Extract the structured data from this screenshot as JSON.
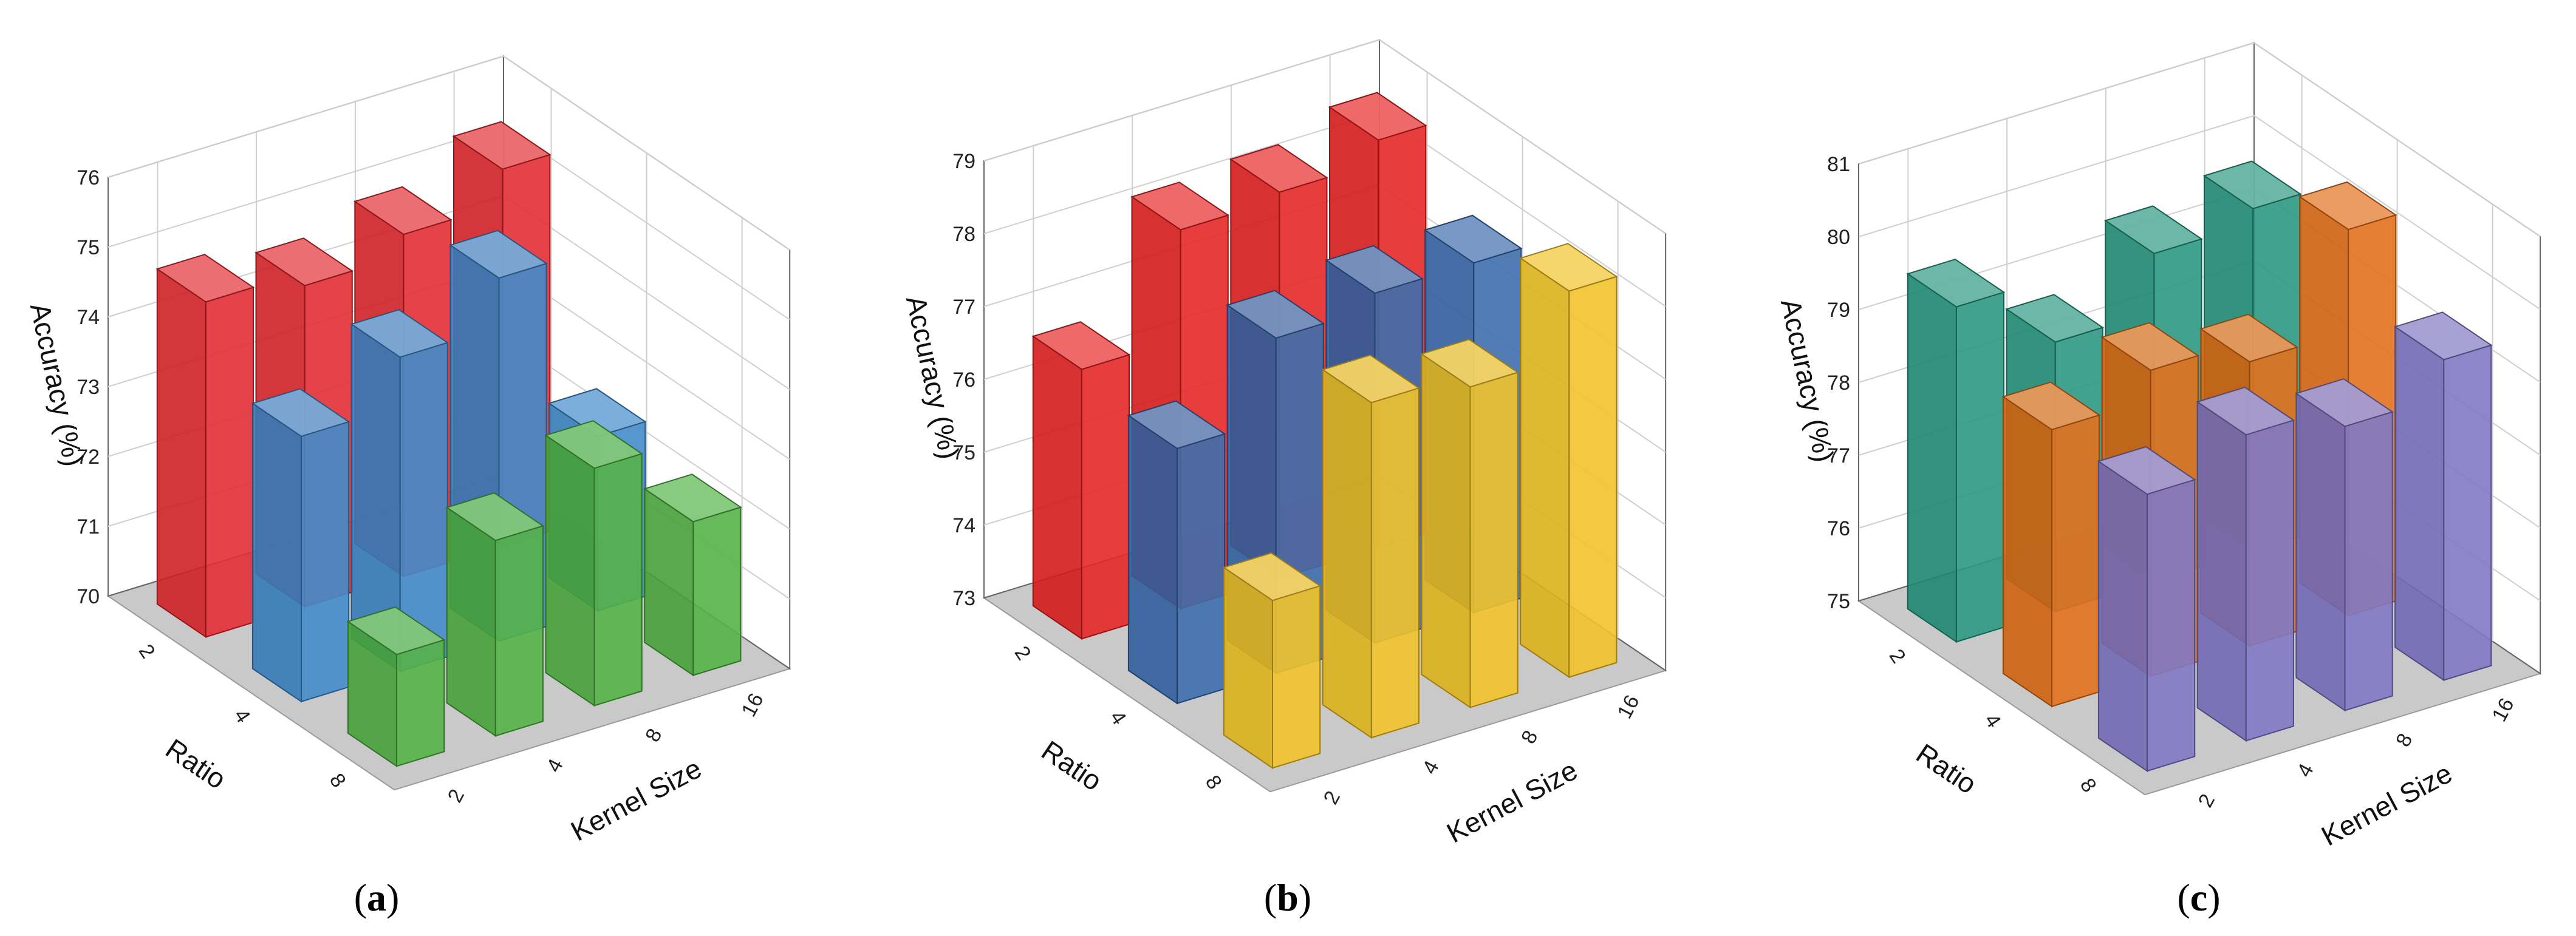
{
  "chart_data": [
    {
      "type": "bar3d",
      "panel": "a",
      "caption": "a",
      "zlabel": "Accuracy (%)",
      "xlabel": "Ratio",
      "ylabel": "Kernel Size",
      "zlim": [
        70,
        76
      ],
      "zticks": [
        "70",
        "71",
        "72",
        "73",
        "74",
        "75",
        "76"
      ],
      "ratio_ticks": [
        "2",
        "4",
        "8"
      ],
      "kernel_ticks": [
        "2",
        "4",
        "8",
        "16"
      ],
      "series": [
        {
          "name": "Ratio 2",
          "color": "#e0242a",
          "values": [
            74.8,
            74.6,
            74.9,
            75.4
          ]
        },
        {
          "name": "Ratio 4",
          "color": "#3a86c8",
          "values": [
            73.8,
            74.5,
            75.2,
            72.5
          ]
        },
        {
          "name": "Ratio 8",
          "color": "#4caf3e",
          "values": [
            71.6,
            72.8,
            73.4,
            72.2
          ]
        }
      ]
    },
    {
      "type": "bar3d",
      "panel": "b",
      "caption": "b",
      "zlabel": "Accuracy (%)",
      "xlabel": "Ratio",
      "ylabel": "Kernel Size",
      "zlim": [
        73,
        79
      ],
      "zticks": [
        "73",
        "74",
        "75",
        "76",
        "77",
        "78",
        "79"
      ],
      "ratio_ticks": [
        "2",
        "4",
        "8"
      ],
      "kernel_ticks": [
        "2",
        "4",
        "8",
        "16"
      ],
      "series": [
        {
          "name": "Ratio 2",
          "color": "#e51d1d",
          "values": [
            76.7,
            78.2,
            78.3,
            78.6
          ]
        },
        {
          "name": "Ratio 4",
          "color": "#3466a8",
          "values": [
            76.5,
            77.6,
            77.8,
            77.8
          ]
        },
        {
          "name": "Ratio 8",
          "color": "#f0c020",
          "values": [
            75.3,
            77.6,
            77.4,
            78.3
          ]
        }
      ]
    },
    {
      "type": "bar3d",
      "panel": "c",
      "caption": "c",
      "zlabel": "Accuracy (%)",
      "xlabel": "Ratio",
      "ylabel": "Kernel Size",
      "zlim": [
        75,
        81
      ],
      "zticks": [
        "75",
        "76",
        "77",
        "78",
        "79",
        "80",
        "81"
      ],
      "ratio_ticks": [
        "2",
        "4",
        "8"
      ],
      "kernel_ticks": [
        "2",
        "4",
        "8",
        "16"
      ],
      "series": [
        {
          "name": "Ratio 2",
          "color": "#21937a",
          "values": [
            79.6,
            78.7,
            79.5,
            79.7
          ]
        },
        {
          "name": "Ratio 4",
          "color": "#e06a12",
          "values": [
            78.8,
            79.2,
            78.9,
            80.3
          ]
        },
        {
          "name": "Ratio 8",
          "color": "#7b72c2",
          "values": [
            78.8,
            79.2,
            78.9,
            79.4
          ]
        }
      ]
    }
  ]
}
